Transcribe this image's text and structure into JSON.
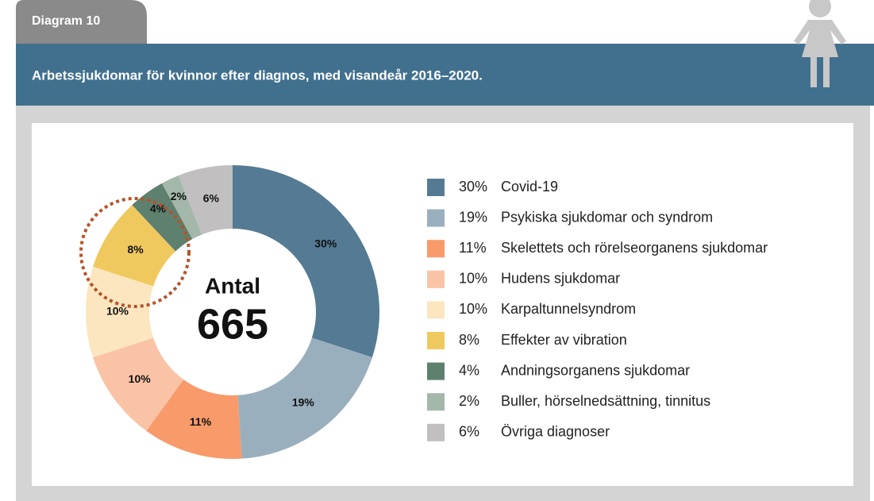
{
  "tab_label": "Diagram 10",
  "chart_data": {
    "type": "donut",
    "title": "Arbetssjukdomar för kvinnor efter diagnos, med visandeår 2016–2020.",
    "center_label": "Antal",
    "total": 665,
    "categories": [
      "Covid-19",
      "Psykiska sjukdomar och syndrom",
      "Skelettets och rörelseorganens sjukdomar",
      "Hudens sjukdomar",
      "Karpaltunnelsyndrom",
      "Effekter av vibration",
      "Andningsorganens sjukdomar",
      "Buller, hörselnedsättning, tinnitus",
      "Övriga diagnoser"
    ],
    "values": [
      30,
      19,
      11,
      10,
      10,
      8,
      4,
      2,
      6
    ],
    "value_labels": [
      "30%",
      "19%",
      "11%",
      "10%",
      "10%",
      "8%",
      "4%",
      "2%",
      "6%"
    ],
    "colors": [
      "#557b94",
      "#9aafbe",
      "#f99a6a",
      "#fbc3a6",
      "#fbe6c0",
      "#f0c95e",
      "#5e806e",
      "#a3b8aa",
      "#c1bfbf"
    ],
    "legend": "right"
  }
}
